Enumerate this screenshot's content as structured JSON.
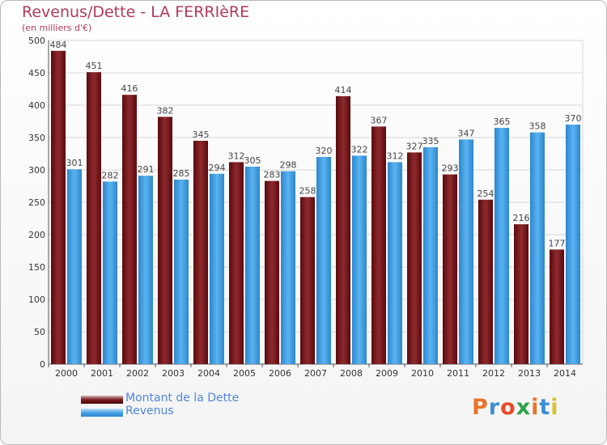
{
  "header": {
    "title": "Revenus/Dette - LA FERRIèRE",
    "subtitle": "(en milliers d'€)"
  },
  "logo": {
    "text": "Proxiti",
    "colors": [
      "#e8742a",
      "#3b8fd6",
      "#e84a2a",
      "#2ea24a",
      "#e8742a",
      "#3b8fd6",
      "#d8c22a"
    ]
  },
  "chart_data": {
    "type": "bar",
    "title": "Revenus/Dette - LA FERRIèRE",
    "subtitle": "(en milliers d'€)",
    "categories": [
      "2000",
      "2001",
      "2002",
      "2003",
      "2004",
      "2005",
      "2006",
      "2007",
      "2008",
      "2009",
      "2010",
      "2011",
      "2012",
      "2013",
      "2014"
    ],
    "series": [
      {
        "name": "Montant de la Dette",
        "color": "#7a1a1e",
        "values": [
          484,
          451,
          416,
          382,
          345,
          312,
          283,
          258,
          414,
          367,
          327,
          293,
          254,
          216,
          177
        ]
      },
      {
        "name": "Revenus",
        "color": "#4aa3e6",
        "values": [
          301,
          282,
          291,
          285,
          294,
          305,
          298,
          320,
          322,
          312,
          335,
          347,
          365,
          358,
          370
        ]
      }
    ],
    "ylim": [
      0,
      500
    ],
    "yticks": [
      0,
      50,
      100,
      150,
      200,
      250,
      300,
      350,
      400,
      450,
      500
    ],
    "grid": true,
    "legend": "bottom-left"
  }
}
